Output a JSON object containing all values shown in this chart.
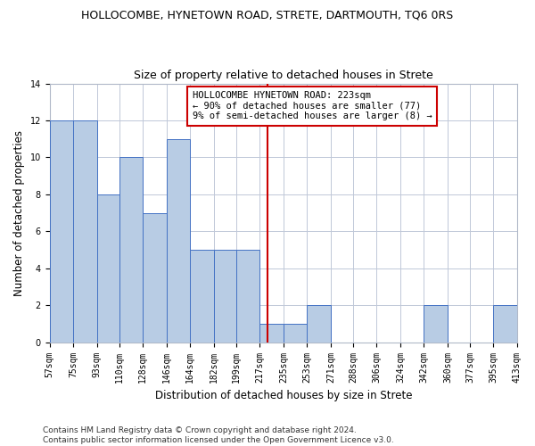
{
  "title": "HOLLOCOMBE, HYNETOWN ROAD, STRETE, DARTMOUTH, TQ6 0RS",
  "subtitle": "Size of property relative to detached houses in Strete",
  "xlabel": "Distribution of detached houses by size in Strete",
  "ylabel": "Number of detached properties",
  "bar_values": [
    12,
    12,
    8,
    10,
    7,
    11,
    5,
    5,
    5,
    1,
    1,
    2,
    0,
    0,
    0,
    0,
    2,
    0,
    0,
    2
  ],
  "bin_labels": [
    "57sqm",
    "75sqm",
    "93sqm",
    "110sqm",
    "128sqm",
    "146sqm",
    "164sqm",
    "182sqm",
    "199sqm",
    "217sqm",
    "235sqm",
    "253sqm",
    "271sqm",
    "288sqm",
    "306sqm",
    "324sqm",
    "342sqm",
    "360sqm",
    "377sqm",
    "395sqm",
    "413sqm"
  ],
  "bar_color": "#b8cce4",
  "bar_edge_color": "#4472c4",
  "vline_x": 223,
  "vline_color": "#cc0000",
  "annotation_text": "HOLLOCOMBE HYNETOWN ROAD: 223sqm\n← 90% of detached houses are smaller (77)\n9% of semi-detached houses are larger (8) →",
  "annotation_box_color": "#ffffff",
  "annotation_box_edge": "#cc0000",
  "ylim": [
    0,
    14
  ],
  "yticks": [
    0,
    2,
    4,
    6,
    8,
    10,
    12,
    14
  ],
  "footnote": "Contains HM Land Registry data © Crown copyright and database right 2024.\nContains public sector information licensed under the Open Government Licence v3.0.",
  "bin_edges": [
    57,
    75,
    93,
    110,
    128,
    146,
    164,
    182,
    199,
    217,
    235,
    253,
    271,
    288,
    306,
    324,
    342,
    360,
    377,
    395,
    413
  ],
  "title_fontsize": 9,
  "subtitle_fontsize": 9,
  "axis_label_fontsize": 8.5,
  "tick_fontsize": 7,
  "annotation_fontsize": 7.5,
  "footnote_fontsize": 6.5
}
